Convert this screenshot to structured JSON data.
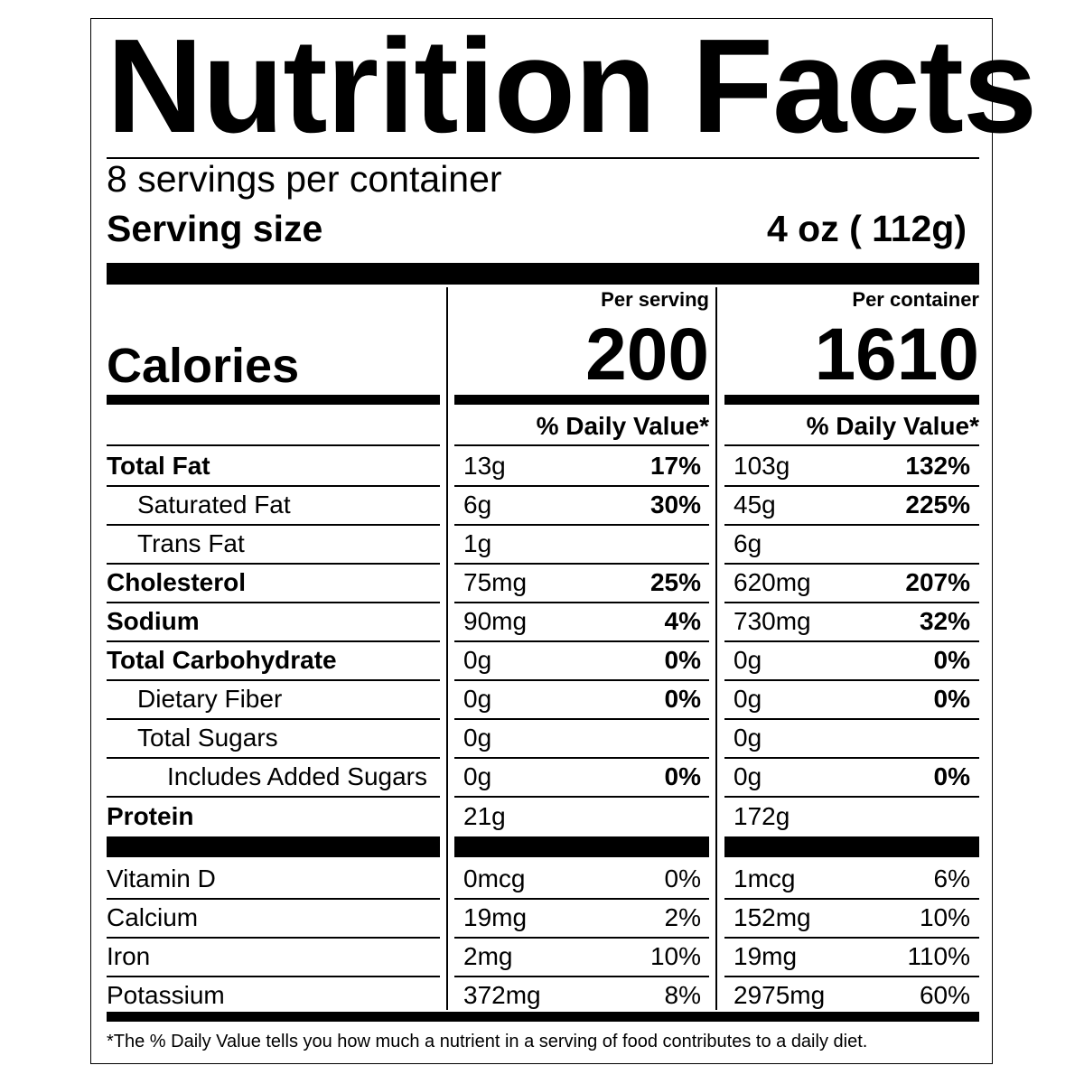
{
  "title": "Nutrition Facts",
  "servings_per_container": "8 servings per container",
  "serving_size_label": "Serving size",
  "serving_size_value": "4 oz ( 112g)",
  "per_serving_label": "Per serving",
  "per_container_label": "Per container",
  "calories_label": "Calories",
  "calories_serving": "200",
  "calories_container": "1610",
  "daily_value_header": "% Daily Value*",
  "nutrients": [
    {
      "name": "Total Fat",
      "bold": true,
      "indent": 0,
      "serving_amount": "13g",
      "serving_dv": "17%",
      "container_amount": "103g",
      "container_dv": "132%"
    },
    {
      "name": "Saturated Fat",
      "bold": false,
      "indent": 1,
      "serving_amount": "6g",
      "serving_dv": "30%",
      "container_amount": "45g",
      "container_dv": "225%"
    },
    {
      "name": "Trans Fat",
      "bold": false,
      "indent": 1,
      "serving_amount": "1g",
      "serving_dv": "",
      "container_amount": "6g",
      "container_dv": ""
    },
    {
      "name": "Cholesterol",
      "bold": true,
      "indent": 0,
      "serving_amount": "75mg",
      "serving_dv": "25%",
      "container_amount": "620mg",
      "container_dv": "207%"
    },
    {
      "name": "Sodium",
      "bold": true,
      "indent": 0,
      "serving_amount": "90mg",
      "serving_dv": "4%",
      "container_amount": "730mg",
      "container_dv": "32%"
    },
    {
      "name": "Total Carbohydrate",
      "bold": true,
      "indent": 0,
      "serving_amount": "0g",
      "serving_dv": "0%",
      "container_amount": "0g",
      "container_dv": "0%"
    },
    {
      "name": "Dietary Fiber",
      "bold": false,
      "indent": 1,
      "serving_amount": "0g",
      "serving_dv": "0%",
      "container_amount": "0g",
      "container_dv": "0%"
    },
    {
      "name": "Total Sugars",
      "bold": false,
      "indent": 1,
      "serving_amount": "0g",
      "serving_dv": "",
      "container_amount": "0g",
      "container_dv": ""
    },
    {
      "name": "Includes Added Sugars",
      "bold": false,
      "indent": 2,
      "serving_amount": "0g",
      "serving_dv": "0%",
      "container_amount": "0g",
      "container_dv": "0%"
    },
    {
      "name": "Protein",
      "bold": true,
      "indent": 0,
      "serving_amount": "21g",
      "serving_dv": "",
      "container_amount": "172g",
      "container_dv": ""
    }
  ],
  "vitamins": [
    {
      "name": "Vitamin D",
      "serving_amount": "0mcg",
      "serving_dv": "0%",
      "container_amount": "1mcg",
      "container_dv": "6%"
    },
    {
      "name": "Calcium",
      "serving_amount": "19mg",
      "serving_dv": "2%",
      "container_amount": "152mg",
      "container_dv": "10%"
    },
    {
      "name": "Iron",
      "serving_amount": "2mg",
      "serving_dv": "10%",
      "container_amount": "19mg",
      "container_dv": "110%"
    },
    {
      "name": "Potassium",
      "serving_amount": "372mg",
      "serving_dv": "8%",
      "container_amount": "2975mg",
      "container_dv": "60%"
    }
  ],
  "footnote": "*The % Daily Value tells you how much a nutrient in a serving of food contributes to a daily diet."
}
